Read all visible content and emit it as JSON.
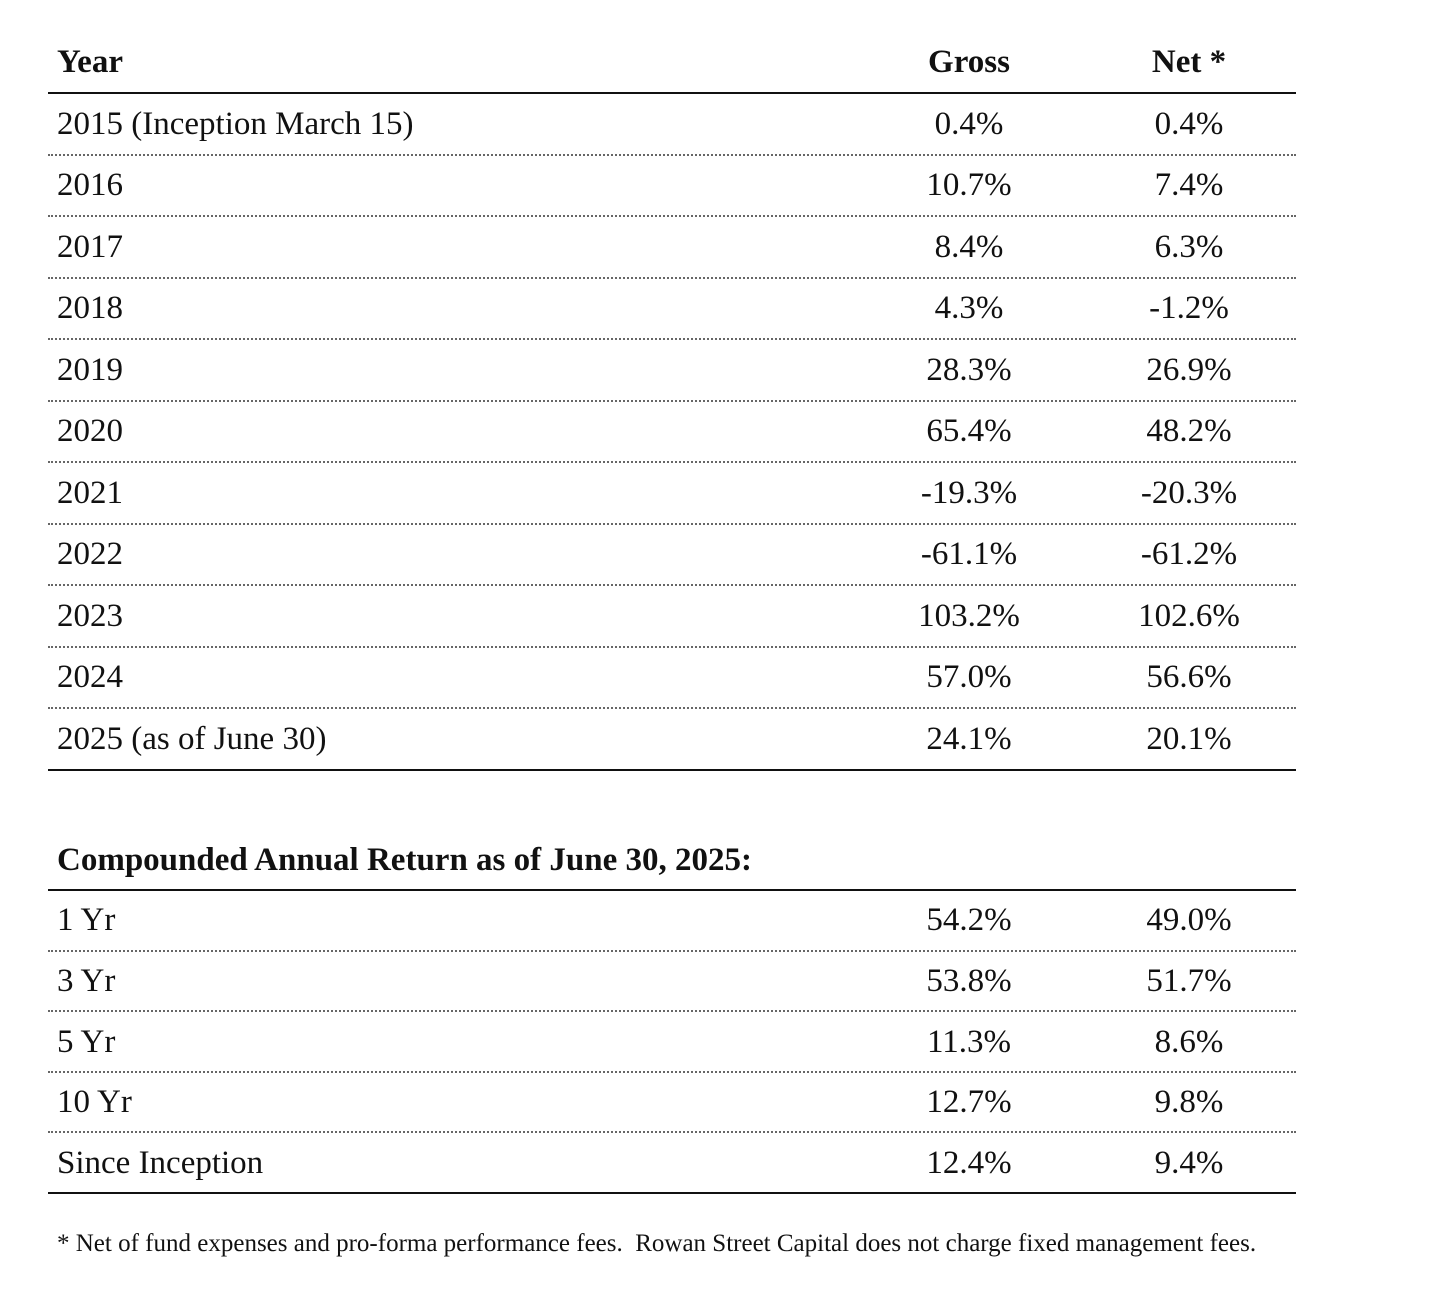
{
  "table": {
    "header": [
      "Year",
      "Gross",
      "Net *"
    ],
    "rows": [
      [
        "2015 (Inception March 15)",
        "0.4%",
        "0.4%"
      ],
      [
        "2016",
        "10.7%",
        "7.4%"
      ],
      [
        "2017",
        "8.4%",
        "6.3%"
      ],
      [
        "2018",
        "4.3%",
        "-1.2%"
      ],
      [
        "2019",
        "28.3%",
        "26.9%"
      ],
      [
        "2020",
        "65.4%",
        "48.2%"
      ],
      [
        "2021",
        "-19.3%",
        "-20.3%"
      ],
      [
        "2022",
        "-61.1%",
        "-61.2%"
      ],
      [
        "2023",
        "103.2%",
        "102.6%"
      ],
      [
        "2024",
        "57.0%",
        "56.6%"
      ],
      [
        "2025 (as of June 30)",
        "24.1%",
        "20.1%"
      ]
    ]
  },
  "compounded": {
    "title": "Compounded Annual Return as of June 30, 2025:",
    "rows": [
      [
        "1 Yr",
        "54.2%",
        "49.0%"
      ],
      [
        "3 Yr",
        "53.8%",
        "51.7%"
      ],
      [
        "5 Yr",
        "11.3%",
        "8.6%"
      ],
      [
        "10 Yr",
        "12.7%",
        "9.8%"
      ],
      [
        "Since Inception",
        "12.4%",
        "9.4%"
      ]
    ]
  },
  "footnote": "* Net of fund expenses and pro-forma performance fees.  Rowan Street Capital does not charge fixed management fees."
}
